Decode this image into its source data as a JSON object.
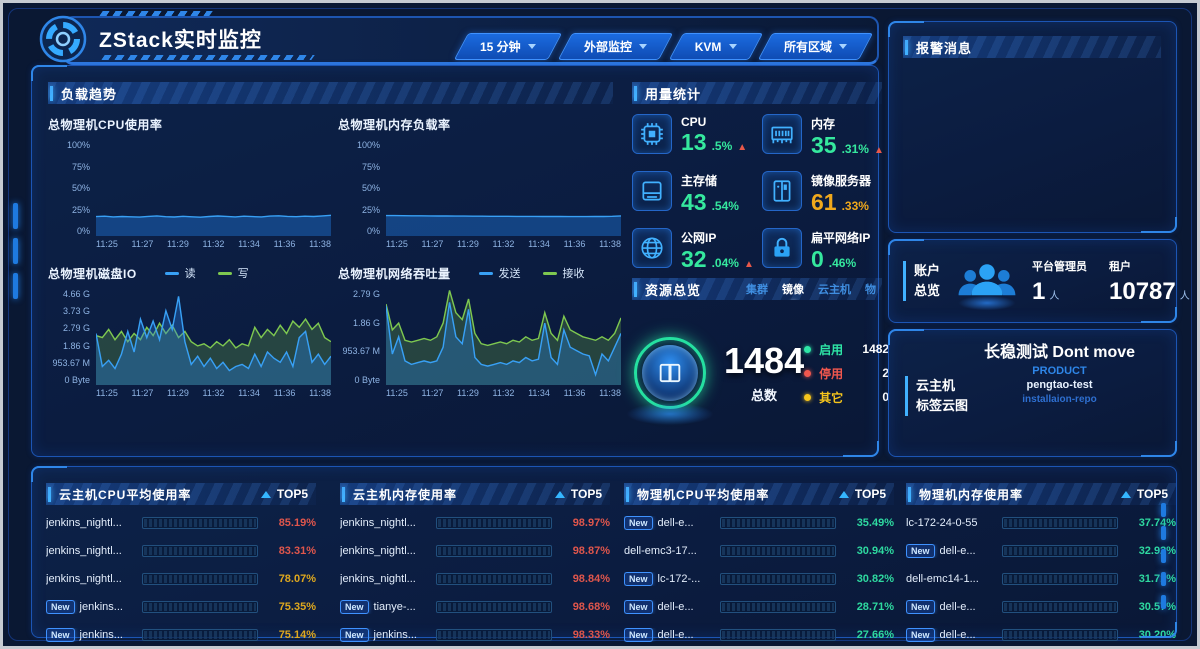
{
  "header": {
    "title": "ZStack实时监控",
    "dropdowns": [
      {
        "key": "time-range",
        "label": "15 分钟"
      },
      {
        "key": "monitor-source",
        "label": "外部监控"
      },
      {
        "key": "hypervisor",
        "label": "KVM"
      },
      {
        "key": "zone",
        "label": "所有区域"
      }
    ]
  },
  "load_trends": {
    "title": "负载趋势"
  },
  "usage": {
    "title": "用量统计",
    "items": [
      {
        "icon": "cpu-icon",
        "label": "CPU",
        "value_int": "13",
        "value_dec": ".5%",
        "tone": "green",
        "rising": true
      },
      {
        "icon": "memory-icon",
        "label": "内存",
        "value_int": "35",
        "value_dec": ".31%",
        "tone": "green",
        "rising": true
      },
      {
        "icon": "storage-icon",
        "label": "主存储",
        "value_int": "43",
        "value_dec": ".54%",
        "tone": "green",
        "rising": false
      },
      {
        "icon": "image-server-icon",
        "label": "镜像服务器",
        "value_int": "61",
        "value_dec": ".33%",
        "tone": "orange",
        "rising": false
      },
      {
        "icon": "globe-icon",
        "label": "公网IP",
        "value_int": "32",
        "value_dec": ".04%",
        "tone": "green",
        "rising": true
      },
      {
        "icon": "lock-icon",
        "label": "扁平网络IP",
        "value_int": "0",
        "value_dec": ".46%",
        "tone": "green",
        "rising": false
      }
    ]
  },
  "resources": {
    "title": "资源总览",
    "tabs": [
      {
        "label": "集群",
        "active": false
      },
      {
        "label": "镜像",
        "active": true
      },
      {
        "label": "云主机",
        "active": false
      },
      {
        "label": "物",
        "active": false
      }
    ],
    "total": "1484",
    "total_label": "总数",
    "legend": [
      {
        "label": "启用",
        "value": "1482",
        "color": "#2ee6a6"
      },
      {
        "label": "停用",
        "value": "2",
        "color": "#f0574e"
      },
      {
        "label": "其它",
        "value": "0",
        "color": "#f5c51c"
      }
    ]
  },
  "alarms": {
    "title": "报警消息"
  },
  "accounts": {
    "title_line1": "账户",
    "title_line2": "总览",
    "stats": [
      {
        "label": "平台管理员",
        "value": "1",
        "unit": "人"
      },
      {
        "label": "租户",
        "value": "10787",
        "unit": "人"
      }
    ]
  },
  "tagcloud": {
    "title_line1": "云主机",
    "title_line2": "标签云图",
    "tags": [
      {
        "text": "长稳测试 Dont move",
        "size": "lg"
      },
      {
        "text": "PRODUCT",
        "size": "md"
      },
      {
        "text": "pengtao-test",
        "size": "sm"
      },
      {
        "text": "installaion-repo",
        "size": "xs"
      }
    ]
  },
  "top_tables": [
    {
      "title": "云主机CPU平均使用率",
      "top_label": "TOP5",
      "rows": [
        {
          "new": false,
          "name": "jenkins_nightl...",
          "pct": 85.19,
          "pct_text": "85.19%",
          "level": "red"
        },
        {
          "new": false,
          "name": "jenkins_nightl...",
          "pct": 83.31,
          "pct_text": "83.31%",
          "level": "red"
        },
        {
          "new": false,
          "name": "jenkins_nightl...",
          "pct": 78.07,
          "pct_text": "78.07%",
          "level": "yellow"
        },
        {
          "new": true,
          "name": "jenkins...",
          "pct": 75.35,
          "pct_text": "75.35%",
          "level": "yellow"
        },
        {
          "new": true,
          "name": "jenkins...",
          "pct": 75.14,
          "pct_text": "75.14%",
          "level": "yellow"
        }
      ]
    },
    {
      "title": "云主机内存使用率",
      "top_label": "TOP5",
      "rows": [
        {
          "new": false,
          "name": "jenkins_nightl...",
          "pct": 98.97,
          "pct_text": "98.97%",
          "level": "hot"
        },
        {
          "new": false,
          "name": "jenkins_nightl...",
          "pct": 98.87,
          "pct_text": "98.87%",
          "level": "hot"
        },
        {
          "new": false,
          "name": "jenkins_nightl...",
          "pct": 98.84,
          "pct_text": "98.84%",
          "level": "hot"
        },
        {
          "new": true,
          "name": "tianye-...",
          "pct": 98.68,
          "pct_text": "98.68%",
          "level": "hot"
        },
        {
          "new": true,
          "name": "jenkins...",
          "pct": 98.33,
          "pct_text": "98.33%",
          "level": "hot"
        }
      ]
    },
    {
      "title": "物理机CPU平均使用率",
      "top_label": "TOP5",
      "rows": [
        {
          "new": true,
          "name": "dell-e...",
          "pct": 35.49,
          "pct_text": "35.49%",
          "level": "green"
        },
        {
          "new": false,
          "name": "dell-emc3-17...",
          "pct": 30.94,
          "pct_text": "30.94%",
          "level": "green"
        },
        {
          "new": true,
          "name": "lc-172-...",
          "pct": 30.82,
          "pct_text": "30.82%",
          "level": "green"
        },
        {
          "new": true,
          "name": "dell-e...",
          "pct": 28.71,
          "pct_text": "28.71%",
          "level": "green"
        },
        {
          "new": true,
          "name": "dell-e...",
          "pct": 27.66,
          "pct_text": "27.66%",
          "level": "green"
        }
      ]
    },
    {
      "title": "物理机内存使用率",
      "top_label": "TOP5",
      "rows": [
        {
          "new": false,
          "name": "lc-172-24-0-55",
          "pct": 37.74,
          "pct_text": "37.74%",
          "level": "green"
        },
        {
          "new": true,
          "name": "dell-e...",
          "pct": 32.92,
          "pct_text": "32.92%",
          "level": "green"
        },
        {
          "new": false,
          "name": "dell-emc14-1...",
          "pct": 31.71,
          "pct_text": "31.71%",
          "level": "green"
        },
        {
          "new": true,
          "name": "dell-e...",
          "pct": 30.57,
          "pct_text": "30.57%",
          "level": "green"
        },
        {
          "new": true,
          "name": "dell-e...",
          "pct": 30.2,
          "pct_text": "30.20%",
          "level": "green"
        }
      ]
    }
  ],
  "chart_data": [
    {
      "type": "area",
      "title": "总物理机CPU使用率",
      "x_labels": [
        "11:25",
        "11:27",
        "11:29",
        "11:32",
        "11:34",
        "11:36",
        "11:38"
      ],
      "y_ticks": [
        "0%",
        "25%",
        "50%",
        "75%",
        "100%"
      ],
      "ymax": 100,
      "ylim": [
        0,
        100
      ],
      "grid": false,
      "legend_visible": false,
      "series": [
        {
          "name": "CPU",
          "color": "#38a0f5",
          "fill": "rgba(28,105,195,0.5)",
          "values": [
            20.2,
            20.6,
            19.9,
            20.3,
            20.0,
            19.7,
            20.4,
            20.9,
            20.1,
            19.8,
            20.5,
            20.0,
            19.6,
            20.3,
            20.8,
            20.4,
            19.9,
            20.6,
            20.2,
            19.9,
            20.7,
            21.0,
            20.4,
            20.1,
            20.6,
            20.3,
            20.9,
            21.6
          ]
        }
      ]
    },
    {
      "type": "area",
      "title": "总物理机内存负载率",
      "x_labels": [
        "11:25",
        "11:27",
        "11:29",
        "11:32",
        "11:34",
        "11:36",
        "11:38"
      ],
      "y_ticks": [
        "0%",
        "25%",
        "50%",
        "75%",
        "100%"
      ],
      "ymax": 100,
      "ylim": [
        0,
        100
      ],
      "grid": false,
      "legend_visible": false,
      "series": [
        {
          "name": "内存",
          "color": "#38a0f5",
          "fill": "rgba(28,105,195,0.5)",
          "values": [
            21.3,
            21.2,
            21.1,
            21.0,
            21.0,
            20.9,
            20.8,
            20.8,
            20.7,
            20.7,
            20.6,
            20.6,
            20.5,
            20.5,
            20.5,
            20.4,
            20.4,
            20.4,
            20.3,
            20.3,
            20.3,
            20.2,
            20.2,
            20.2,
            20.3,
            20.3,
            20.5,
            20.9
          ]
        }
      ]
    },
    {
      "type": "line",
      "title": "总物理机磁盘IO",
      "x_labels": [
        "11:25",
        "11:27",
        "11:29",
        "11:32",
        "11:34",
        "11:36",
        "11:38"
      ],
      "y_ticks": [
        "0 Byte",
        "953.67 M",
        "1.86 G",
        "2.79 G",
        "3.73 G",
        "4.66 G"
      ],
      "ymax": 4.66,
      "unit": "GB",
      "grid": false,
      "legend_visible": true,
      "series": [
        {
          "name": "写",
          "color": "#7ec850",
          "fill": "rgba(118,190,70,0.25)",
          "values": [
            2.4,
            2.3,
            2.7,
            2.2,
            2.6,
            2.1,
            2.5,
            2.2,
            2.8,
            2.4,
            3.0,
            2.5,
            2.9,
            2.3,
            2.6,
            2.1,
            1.9,
            2.0,
            1.8,
            2.1,
            1.9,
            2.2,
            1.8,
            2.0,
            1.9,
            2.8,
            2.3,
            2.7,
            2.4,
            2.9,
            2.5,
            3.1,
            2.8,
            3.2,
            2.7,
            3.0,
            2.3,
            2.1
          ]
        },
        {
          "name": "读",
          "color": "#38a0f5",
          "fill": "rgba(40,130,230,0.35)",
          "values": [
            2.5,
            0.9,
            1.2,
            0.8,
            1.5,
            2.6,
            1.6,
            3.2,
            2.3,
            3.1,
            2.2,
            3.6,
            2.7,
            4.3,
            2.1,
            1.0,
            1.4,
            0.9,
            1.3,
            0.8,
            1.1,
            0.7,
            0.9,
            1.0,
            0.8,
            1.5,
            0.9,
            1.6,
            1.3,
            1.1,
            1.6,
            0.9,
            2.3,
            2.6,
            1.1,
            1.5,
            1.0,
            1.4
          ]
        }
      ],
      "legend_order": [
        "读",
        "写"
      ]
    },
    {
      "type": "line",
      "title": "总物理机网络吞吐量",
      "x_labels": [
        "11:25",
        "11:27",
        "11:29",
        "11:32",
        "11:34",
        "11:36",
        "11:38"
      ],
      "y_ticks": [
        "0 Byte",
        "953.67 M",
        "1.86 G",
        "2.79 G"
      ],
      "ymax": 2.79,
      "unit": "GB",
      "grid": false,
      "legend_visible": true,
      "series": [
        {
          "name": "接收",
          "color": "#7ec850",
          "fill": "rgba(118,190,70,0.25)",
          "values": [
            2.35,
            1.6,
            1.8,
            1.3,
            1.25,
            1.3,
            1.35,
            1.3,
            1.4,
            1.8,
            2.75,
            2.1,
            1.9,
            2.5,
            1.5,
            1.2,
            1.15,
            1.2,
            1.25,
            1.2,
            1.3,
            1.25,
            1.4,
            1.3,
            1.35,
            2.1,
            1.5,
            1.3,
            2.0,
            1.6,
            1.5,
            1.4,
            1.35,
            1.3,
            1.4,
            1.3,
            1.5,
            1.95
          ]
        },
        {
          "name": "发送",
          "color": "#38a0f5",
          "fill": "rgba(40,130,230,0.32)",
          "values": [
            2.3,
            0.9,
            1.4,
            0.7,
            0.6,
            0.65,
            0.7,
            0.65,
            0.7,
            1.1,
            2.4,
            1.4,
            1.2,
            2.2,
            0.8,
            0.6,
            0.55,
            0.6,
            0.65,
            0.6,
            0.7,
            0.65,
            0.8,
            0.7,
            0.75,
            1.8,
            0.8,
            0.6,
            1.6,
            1.1,
            1.0,
            0.9,
            0.85,
            0.3,
            0.9,
            0.7,
            1.1,
            1.5
          ]
        }
      ],
      "legend_order": [
        "发送",
        "接收"
      ]
    }
  ],
  "colors": {
    "accent_blue": "#2f86e8",
    "value_green": "#35e89e",
    "value_orange": "#f0a81c",
    "alert_red": "#e8584a",
    "gauge_red": "#e0564c",
    "gauge_yellow": "#dfa81e",
    "gauge_green": "#2ed9a0"
  }
}
